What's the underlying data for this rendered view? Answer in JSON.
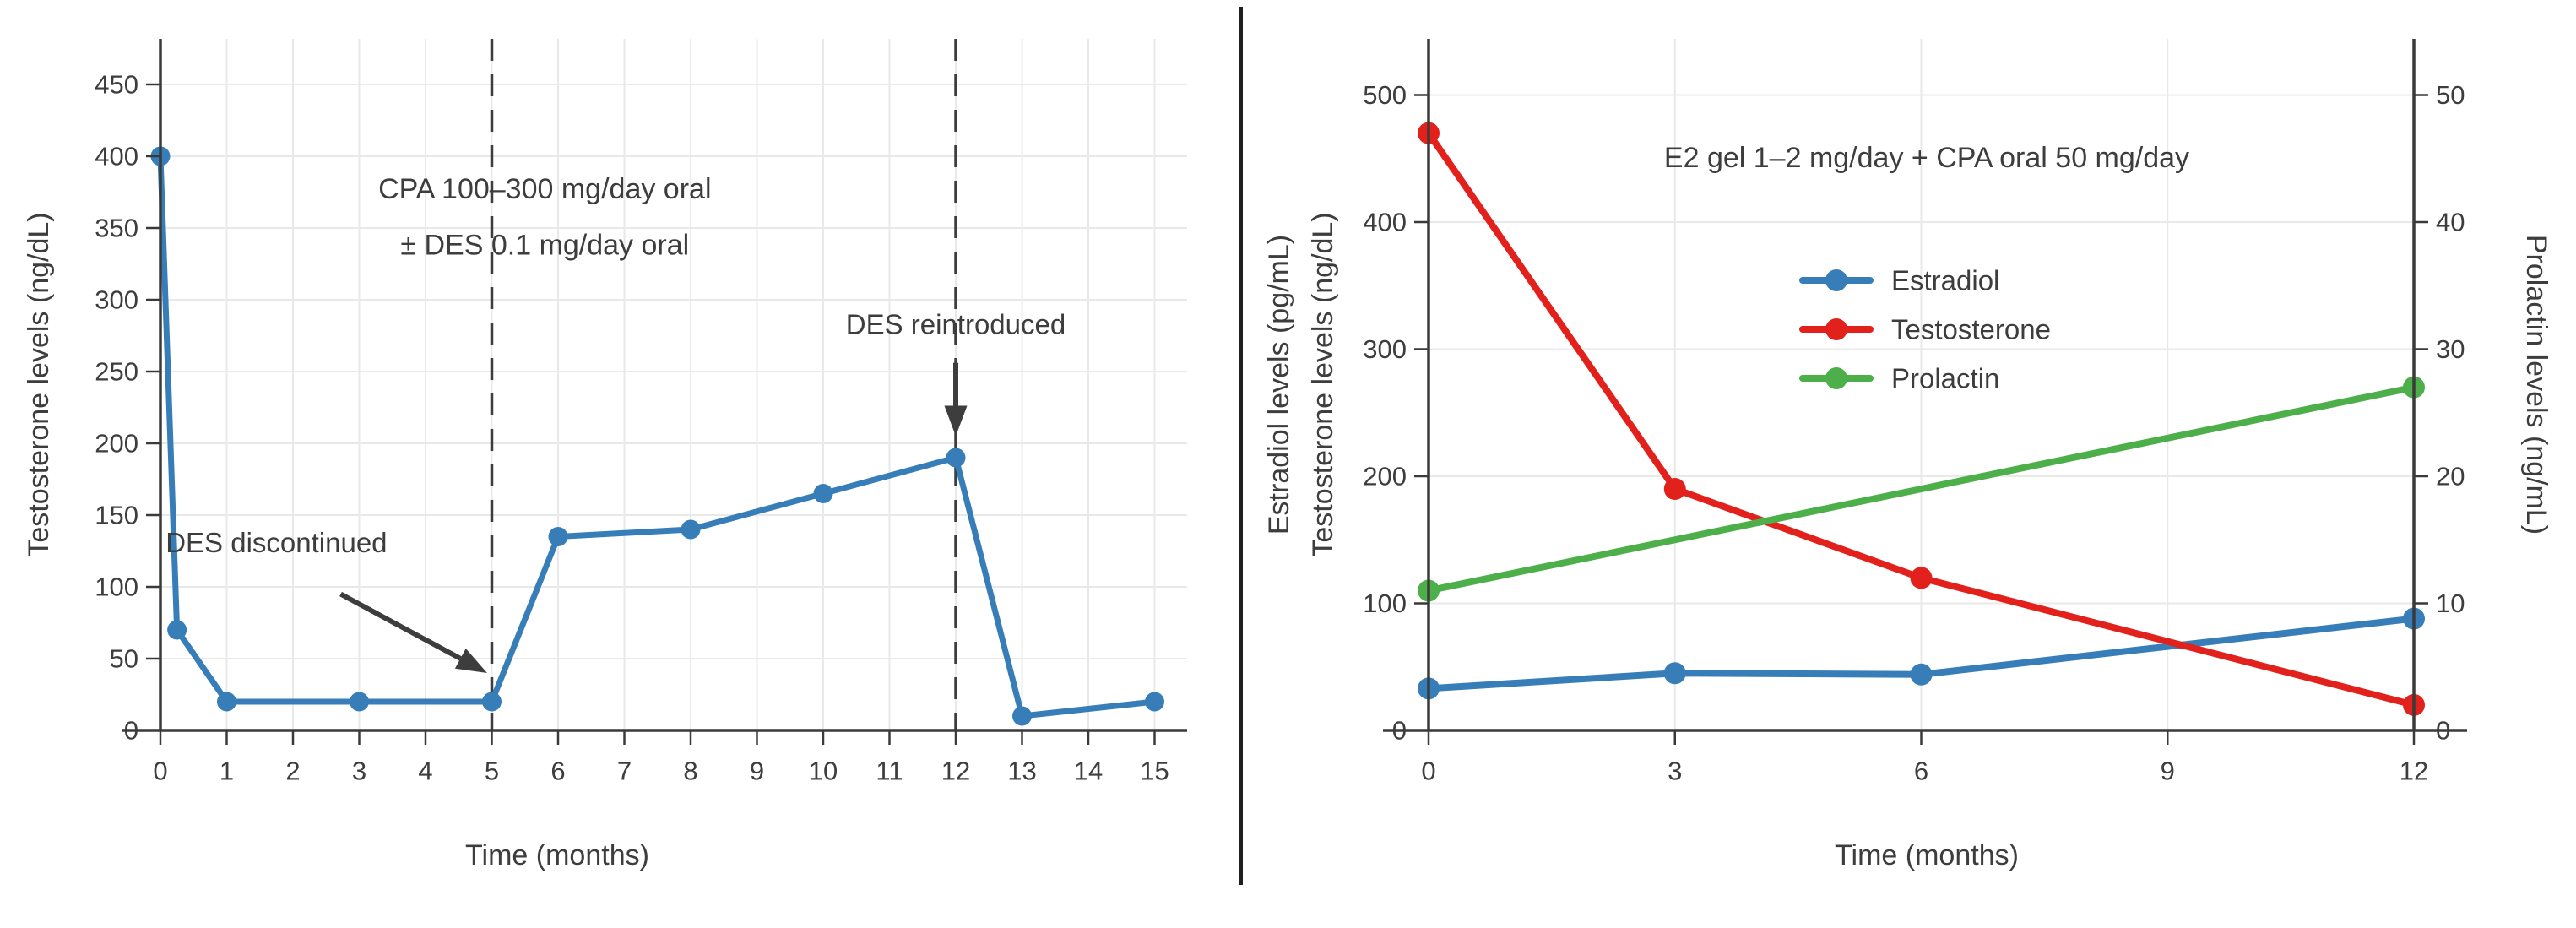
{
  "page": {
    "background": "#ffffff",
    "divider_color": "#1f1f1f"
  },
  "palette": {
    "blue": "#377eb8",
    "red": "#e2211c",
    "green": "#4daf4a",
    "text": "#3d3d3d",
    "spine": "#3a3a3a",
    "grid": "#e9e9e9",
    "annotation": "#3d3d3d"
  },
  "chart_data": [
    {
      "type": "line",
      "title": "",
      "xlabel": "Time (months)",
      "ylabel": "Testosterone levels (ng/dL)",
      "xlim": [
        0,
        15.5
      ],
      "ylim": [
        0,
        482
      ],
      "xticks": [
        0,
        1,
        2,
        3,
        4,
        5,
        6,
        7,
        8,
        9,
        10,
        11,
        12,
        13,
        14,
        15
      ],
      "yticks": [
        0,
        50,
        100,
        150,
        200,
        250,
        300,
        350,
        400,
        450
      ],
      "grid": true,
      "legend_position": "none",
      "series": [
        {
          "name": "Testosterone",
          "color": "#377eb8",
          "x": [
            0,
            0.25,
            1,
            3,
            5,
            6,
            8,
            10,
            12,
            13,
            15
          ],
          "y": [
            400,
            70,
            20,
            20,
            20,
            135,
            140,
            165,
            190,
            10,
            20
          ]
        }
      ],
      "vlines": [
        {
          "x": 5,
          "style": "dashed"
        },
        {
          "x": 12,
          "style": "dashed"
        }
      ],
      "annotations": [
        {
          "text": "CPA 100–300 mg/day oral",
          "x": 5.8,
          "y": 377,
          "size": 34
        },
        {
          "text": "± DES 0.1 mg/day oral",
          "x": 5.8,
          "y": 338,
          "size": 34
        },
        {
          "text": "DES discontinued",
          "x": 1.75,
          "y": 131,
          "size": 33,
          "arrow": {
            "from": [
              2.72,
              95
            ],
            "to": [
              4.93,
              40
            ]
          }
        },
        {
          "text": "DES reintroduced",
          "x": 12,
          "y": 283,
          "size": 33,
          "arrow": {
            "from": [
              12,
              256
            ],
            "to": [
              12,
              205
            ]
          }
        }
      ]
    },
    {
      "type": "line",
      "title": "E2 gel 1–2 mg/day + CPA oral 50 mg/day",
      "xlabel": "Time (months)",
      "ylabel_left_lines": [
        "Estradiol levels (pg/mL)",
        "Testosterone levels (ng/dL)"
      ],
      "ylabel_right": "Prolactin levels (ng/mL)",
      "xlim": [
        0,
        12
      ],
      "ylim_left": [
        0,
        545
      ],
      "ylim_right": [
        0,
        54.5
      ],
      "xticks": [
        0,
        3,
        6,
        9,
        12
      ],
      "yticks_left": [
        0,
        100,
        200,
        300,
        400,
        500
      ],
      "yticks_right": [
        0,
        10,
        20,
        30,
        40,
        50
      ],
      "grid": true,
      "legend_position": "center-left-inside",
      "series": [
        {
          "name": "Estradiol",
          "axis": "left",
          "color": "#377eb8",
          "x": [
            0,
            3,
            6,
            12
          ],
          "y": [
            33,
            45,
            44,
            88
          ]
        },
        {
          "name": "Testosterone",
          "axis": "left",
          "color": "#e2211c",
          "x": [
            0,
            3,
            6,
            12
          ],
          "y": [
            470,
            190,
            120,
            20
          ]
        },
        {
          "name": "Prolactin",
          "axis": "right",
          "color": "#4daf4a",
          "x": [
            0,
            12
          ],
          "y": [
            11,
            27
          ]
        }
      ],
      "legend": [
        "Estradiol",
        "Testosterone",
        "Prolactin"
      ]
    }
  ]
}
